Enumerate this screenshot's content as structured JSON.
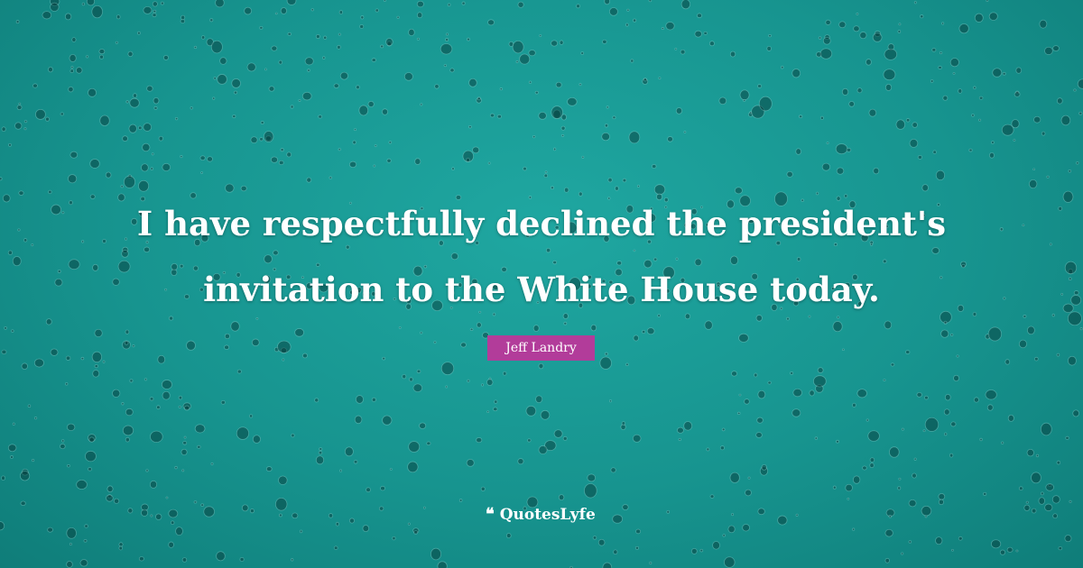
{
  "quote": {
    "line1": "I have respectfully declined the president's",
    "line2": "invitation to the White House today."
  },
  "author": "Jeff Landry",
  "brand": {
    "name": "QuotesLyfe",
    "icon": "quote-face-logo-icon"
  },
  "colors": {
    "background": "#17948f",
    "author_tag": "#b23c9a",
    "text": "#ffffff"
  }
}
